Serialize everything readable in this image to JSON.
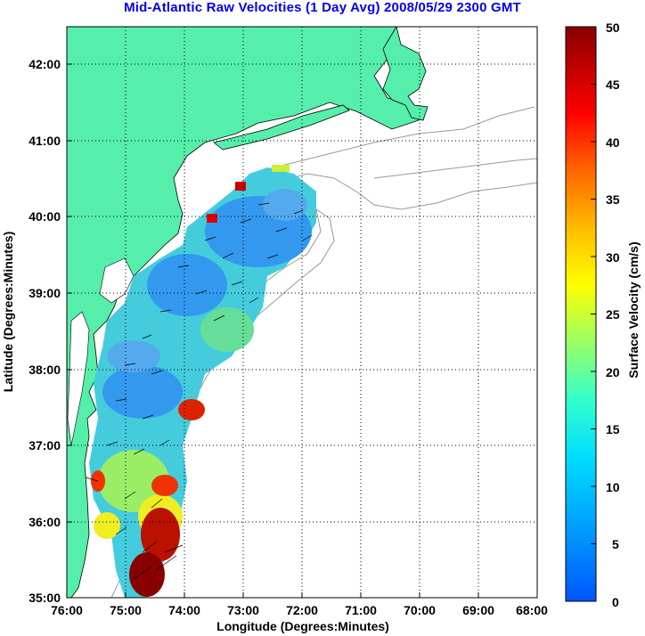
{
  "title": "Mid-Atlantic Raw Velocities (1 Day Avg) 2008/05/29 2300 GMT",
  "map": {
    "xlabel": "Longitude (Degrees:Minutes)",
    "ylabel": "Latitude (Degrees:Minutes)",
    "lon_ticks": [
      "76:00",
      "75:00",
      "74:00",
      "73:00",
      "72:00",
      "71:00",
      "70:00",
      "69:00",
      "68:00"
    ],
    "lat_ticks": [
      "42:00",
      "41:00",
      "40:00",
      "39:00",
      "38:00",
      "37:00",
      "36:00",
      "35:00"
    ],
    "lon_range": [
      -76,
      -68
    ],
    "lat_range": [
      35,
      42.5
    ],
    "land_color": "#55eeaa",
    "grid": "dotted"
  },
  "colorbar": {
    "label": "Surface Velocity (cm/s)",
    "ticks": [
      "50",
      "45",
      "40",
      "35",
      "30",
      "25",
      "20",
      "15",
      "10",
      "5",
      "0"
    ],
    "range": [
      0,
      50
    ],
    "colormap": "jet"
  }
}
